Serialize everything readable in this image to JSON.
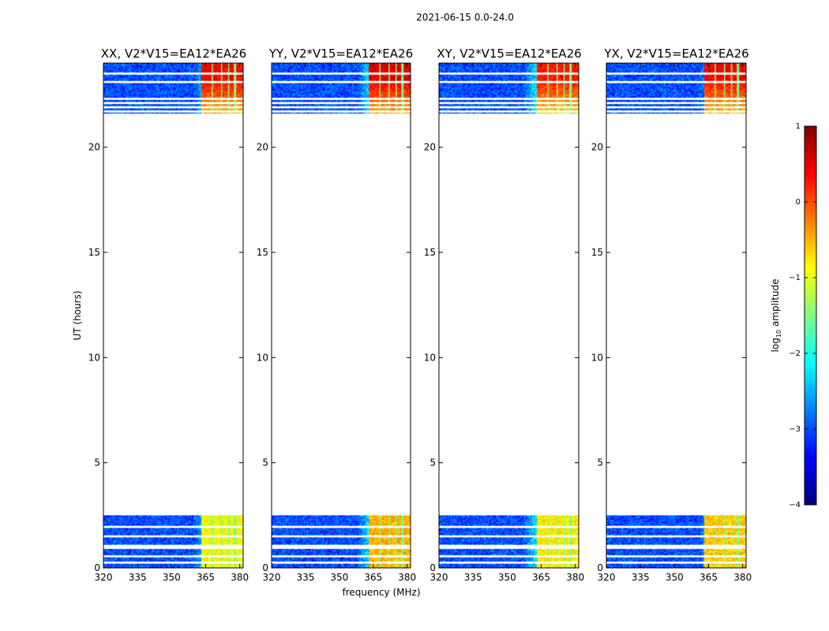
{
  "chart_data": {
    "type": "heatmap",
    "suptitle": "2021-06-15 0.0-24.0",
    "xlabel": "frequency (MHz)",
    "ylabel": "UT (hours)",
    "xlim": [
      320,
      381.5
    ],
    "ylim": [
      0,
      24
    ],
    "xticks": [
      320,
      335,
      350,
      365,
      380
    ],
    "yticks": [
      0,
      5,
      10,
      15,
      20
    ],
    "colorbar": {
      "label_base": "log",
      "label_sub": "10",
      "label_rest": " amplitude",
      "range": [
        -4,
        1
      ],
      "ticks": [
        1,
        0,
        -1,
        -2,
        -3,
        -4
      ],
      "tick_labels": [
        "1",
        "0",
        "−1",
        "−2",
        "−3",
        "−4"
      ],
      "colormap": "jet"
    },
    "data_blocks_ut": [
      [
        0,
        2.5
      ],
      [
        21.6,
        24
      ]
    ],
    "flagged_rows_ut": [
      0.25,
      0.55,
      0.95,
      1.05,
      1.5,
      1.95,
      21.7,
      21.9,
      22.1,
      22.3,
      23.1,
      23.5
    ],
    "strong_band_mhz": [
      363,
      381
    ],
    "strong_channel_edges_mhz": [
      368,
      372,
      375,
      378
    ],
    "panels": [
      {
        "title": "XX, V2*V15=EA12*EA26",
        "band_level_top": 0.4,
        "band_level_bottom": -0.9,
        "edge_mhz": 360
      },
      {
        "title": "YY, V2*V15=EA12*EA26",
        "band_level_top": 0.5,
        "band_level_bottom": -0.5,
        "edge_mhz": 358
      },
      {
        "title": "XY, V2*V15=EA12*EA26",
        "band_level_top": 0.3,
        "band_level_bottom": -0.8,
        "edge_mhz": 357
      },
      {
        "title": "YX, V2*V15=EA12*EA26",
        "band_level_top": 0.4,
        "band_level_bottom": -0.6,
        "edge_mhz": 361
      }
    ]
  }
}
